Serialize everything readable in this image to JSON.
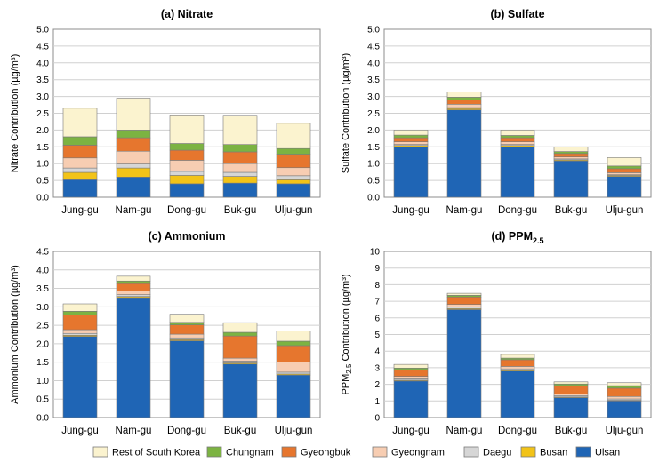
{
  "legend": {
    "order": [
      "Rest of South Korea",
      "Chungnam",
      "Gyeongbuk",
      "Gyeongnam",
      "Daegu",
      "Busan",
      "Ulsan"
    ],
    "colors": {
      "Ulsan": "#1f65b5",
      "Busan": "#f2c318",
      "Daegu": "#d6d6d6",
      "Gyeongnam": "#f7cdb2",
      "Gyeongbuk": "#e6762e",
      "Chungnam": "#7cb342",
      "Rest of South Korea": "#fbf3cf"
    }
  },
  "unit_display": "(µg/m³)",
  "chart_data": [
    {
      "type": "bar",
      "stacked": true,
      "title": "(a) Nitrate",
      "ylabel": "Nitrate Contribution",
      "ylim": [
        0,
        5.0
      ],
      "yticks": [
        "0.0",
        "0.5",
        "1.0",
        "1.5",
        "2.0",
        "2.5",
        "3.0",
        "3.5",
        "4.0",
        "4.5",
        "5.0"
      ],
      "categories": [
        "Jung-gu",
        "Nam-gu",
        "Dong-gu",
        "Buk-gu",
        "Ulju-gun"
      ],
      "series": [
        {
          "name": "Ulsan",
          "values": [
            0.52,
            0.6,
            0.4,
            0.42,
            0.4
          ]
        },
        {
          "name": "Busan",
          "values": [
            0.22,
            0.27,
            0.25,
            0.2,
            0.12
          ]
        },
        {
          "name": "Daegu",
          "values": [
            0.13,
            0.12,
            0.12,
            0.12,
            0.12
          ]
        },
        {
          "name": "Gyeongnam",
          "values": [
            0.3,
            0.38,
            0.33,
            0.26,
            0.24
          ]
        },
        {
          "name": "Gyeongbuk",
          "values": [
            0.38,
            0.4,
            0.3,
            0.35,
            0.4
          ]
        },
        {
          "name": "Chungnam",
          "values": [
            0.25,
            0.23,
            0.2,
            0.22,
            0.17
          ]
        },
        {
          "name": "Rest of South Korea",
          "values": [
            0.85,
            0.95,
            0.85,
            0.87,
            0.75
          ]
        }
      ]
    },
    {
      "type": "bar",
      "stacked": true,
      "title": "(b) Sulfate",
      "ylabel": "Sulfate Contribution",
      "ylim": [
        0,
        5.0
      ],
      "yticks": [
        "0.0",
        "0.5",
        "1.0",
        "1.5",
        "2.0",
        "2.5",
        "3.0",
        "3.5",
        "4.0",
        "4.5",
        "5.0"
      ],
      "categories": [
        "Jung-gu",
        "Nam-gu",
        "Dong-gu",
        "Buk-gu",
        "Ulju-gun"
      ],
      "series": [
        {
          "name": "Ulsan",
          "values": [
            1.5,
            2.6,
            1.5,
            1.08,
            0.62
          ]
        },
        {
          "name": "Busan",
          "values": [
            0.04,
            0.04,
            0.04,
            0.03,
            0.03
          ]
        },
        {
          "name": "Daegu",
          "values": [
            0.03,
            0.03,
            0.03,
            0.03,
            0.02
          ]
        },
        {
          "name": "Gyeongnam",
          "values": [
            0.08,
            0.1,
            0.08,
            0.06,
            0.06
          ]
        },
        {
          "name": "Gyeongbuk",
          "values": [
            0.12,
            0.13,
            0.12,
            0.1,
            0.12
          ]
        },
        {
          "name": "Chungnam",
          "values": [
            0.08,
            0.08,
            0.07,
            0.06,
            0.08
          ]
        },
        {
          "name": "Rest of South Korea",
          "values": [
            0.15,
            0.15,
            0.16,
            0.14,
            0.25
          ]
        }
      ]
    },
    {
      "type": "bar",
      "stacked": true,
      "title": "(c) Ammonium",
      "ylabel": "Ammonium Contribution",
      "ylim": [
        0,
        4.5
      ],
      "yticks": [
        "0.0",
        "0.5",
        "1.0",
        "1.5",
        "2.0",
        "2.5",
        "3.0",
        "3.5",
        "4.0",
        "4.5"
      ],
      "categories": [
        "Jung-gu",
        "Nam-gu",
        "Dong-gu",
        "Buk-gu",
        "Ulju-gun"
      ],
      "series": [
        {
          "name": "Ulsan",
          "values": [
            2.2,
            3.25,
            2.08,
            1.45,
            1.15
          ]
        },
        {
          "name": "Busan",
          "values": [
            0.03,
            0.03,
            0.03,
            0.03,
            0.03
          ]
        },
        {
          "name": "Daegu",
          "values": [
            0.05,
            0.05,
            0.05,
            0.05,
            0.05
          ]
        },
        {
          "name": "Gyeongnam",
          "values": [
            0.1,
            0.1,
            0.1,
            0.08,
            0.27
          ]
        },
        {
          "name": "Gyeongbuk",
          "values": [
            0.4,
            0.2,
            0.25,
            0.6,
            0.45
          ]
        },
        {
          "name": "Chungnam",
          "values": [
            0.1,
            0.07,
            0.07,
            0.1,
            0.12
          ]
        },
        {
          "name": "Rest of South Korea",
          "values": [
            0.2,
            0.13,
            0.22,
            0.26,
            0.28
          ]
        }
      ]
    },
    {
      "type": "bar",
      "stacked": true,
      "title": "(d) PPM",
      "title_sub": "2.5",
      "ylabel": "PPM",
      "ylabel_sub": "2.5",
      "ylabel_suffix": " Contribution",
      "ylim": [
        0,
        10
      ],
      "yticks": [
        "0",
        "1",
        "2",
        "3",
        "4",
        "5",
        "6",
        "7",
        "8",
        "9",
        "10"
      ],
      "categories": [
        "Jung-gu",
        "Nam-gu",
        "Dong-gu",
        "Buk-gu",
        "Ulju-gun"
      ],
      "series": [
        {
          "name": "Ulsan",
          "values": [
            2.2,
            6.5,
            2.8,
            1.2,
            1.0
          ]
        },
        {
          "name": "Busan",
          "values": [
            0.05,
            0.06,
            0.05,
            0.04,
            0.04
          ]
        },
        {
          "name": "Daegu",
          "values": [
            0.08,
            0.1,
            0.08,
            0.08,
            0.08
          ]
        },
        {
          "name": "Gyeongnam",
          "values": [
            0.15,
            0.15,
            0.15,
            0.1,
            0.15
          ]
        },
        {
          "name": "Gyeongbuk",
          "values": [
            0.4,
            0.45,
            0.4,
            0.5,
            0.5
          ]
        },
        {
          "name": "Chungnam",
          "values": [
            0.1,
            0.1,
            0.1,
            0.1,
            0.15
          ]
        },
        {
          "name": "Rest of South Korea",
          "values": [
            0.22,
            0.12,
            0.22,
            0.13,
            0.18
          ]
        }
      ]
    }
  ]
}
